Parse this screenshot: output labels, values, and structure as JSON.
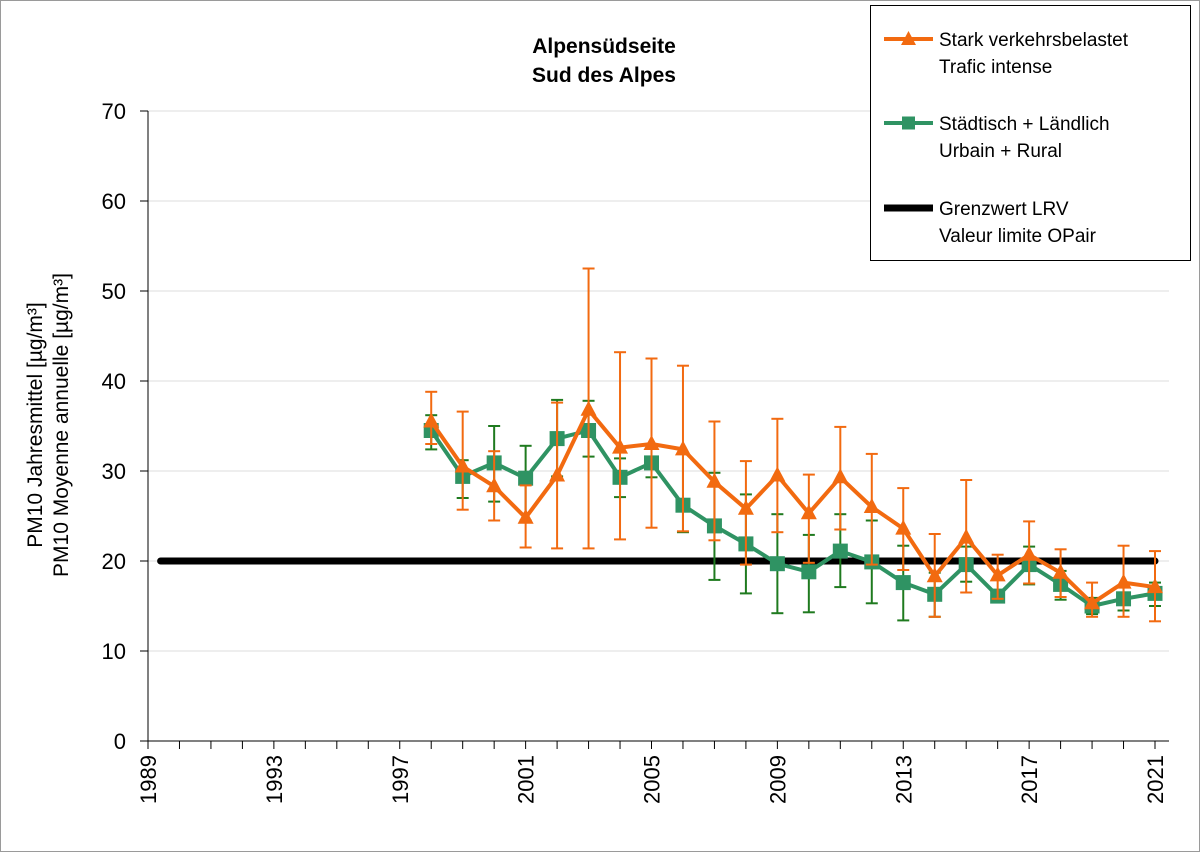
{
  "chart_data": {
    "type": "line",
    "title": [
      "Alpensüdseite",
      "Sud des Alpes"
    ],
    "ylabel": [
      "PM10 Jahresmittel [µg/m³]",
      "PM10 Moyenne annuelle [µg/m³]"
    ],
    "xlabel": "",
    "xlim": [
      1989,
      2021
    ],
    "ylim": [
      0,
      70
    ],
    "x_ticks": [
      1989,
      1993,
      1997,
      2001,
      2005,
      2009,
      2013,
      2017,
      2021
    ],
    "x_tick_labels": [
      "1989",
      "1993",
      "1997",
      "2001",
      "2005",
      "2009",
      "2013",
      "2017",
      "2021"
    ],
    "y_ticks": [
      0,
      10,
      20,
      30,
      40,
      50,
      60,
      70
    ],
    "y_tick_labels": [
      "0",
      "10",
      "20",
      "30",
      "40",
      "50",
      "60",
      "70"
    ],
    "grid": "horizontal",
    "legend_position": "top-right",
    "series": [
      {
        "name": "Stark verkehrsbelastet",
        "name2": "Trafic intense",
        "color": "#F26A10",
        "marker": "triangle",
        "x": [
          1998,
          1999,
          2000,
          2001,
          2002,
          2003,
          2004,
          2005,
          2006,
          2007,
          2008,
          2009,
          2010,
          2011,
          2012,
          2013,
          2014,
          2015,
          2016,
          2017,
          2018,
          2019,
          2020,
          2021
        ],
        "values": [
          35.5,
          30.5,
          28.3,
          24.8,
          29.5,
          36.8,
          32.6,
          33.0,
          32.4,
          28.8,
          25.8,
          29.5,
          25.3,
          29.3,
          26.0,
          23.6,
          18.3,
          22.6,
          18.4,
          20.7,
          18.7,
          15.3,
          17.6,
          17.1
        ],
        "err_low": [
          33.0,
          25.7,
          24.5,
          21.5,
          21.4,
          21.4,
          22.4,
          23.7,
          23.3,
          22.3,
          19.6,
          23.2,
          19.8,
          23.5,
          19.6,
          19.0,
          13.8,
          16.5,
          15.8,
          17.5,
          16.0,
          13.8,
          13.8,
          13.3
        ],
        "err_high": [
          38.8,
          36.6,
          32.2,
          28.4,
          37.6,
          52.5,
          43.2,
          42.5,
          41.7,
          35.5,
          31.1,
          35.8,
          29.6,
          34.9,
          31.9,
          28.1,
          23.0,
          29.0,
          20.7,
          24.4,
          21.3,
          17.6,
          21.7,
          21.1
        ]
      },
      {
        "name": "Städtisch + Ländlich",
        "name2": "Urbain + Rural",
        "color": "#2F9363",
        "err_color": "#1F7A1F",
        "marker": "square",
        "x": [
          1998,
          1999,
          2000,
          2001,
          2002,
          2003,
          2004,
          2005,
          2006,
          2007,
          2008,
          2009,
          2010,
          2011,
          2012,
          2013,
          2014,
          2015,
          2016,
          2017,
          2018,
          2019,
          2020,
          2021
        ],
        "values": [
          34.5,
          29.4,
          30.9,
          29.2,
          33.6,
          34.5,
          29.3,
          30.9,
          26.2,
          23.9,
          21.9,
          19.7,
          18.8,
          21.1,
          19.9,
          17.6,
          16.3,
          19.6,
          16.1,
          19.6,
          17.4,
          15.0,
          15.8,
          16.4
        ],
        "err_low": [
          32.4,
          27.0,
          26.6,
          24.5,
          29.4,
          31.6,
          27.1,
          29.3,
          23.2,
          17.9,
          16.4,
          14.2,
          14.3,
          17.1,
          15.3,
          13.4,
          13.8,
          17.7,
          15.9,
          17.4,
          15.7,
          14.1,
          14.5,
          15.0
        ],
        "err_high": [
          36.2,
          31.2,
          35.0,
          32.8,
          37.9,
          37.8,
          31.4,
          32.5,
          32.0,
          29.8,
          27.4,
          25.2,
          22.9,
          25.2,
          24.5,
          21.7,
          18.7,
          21.6,
          16.3,
          21.6,
          18.9,
          15.9,
          17.2,
          17.6
        ]
      },
      {
        "name": "Grenzwert LRV",
        "name2": "Valeur limite OPair",
        "color": "#000000",
        "marker": "none",
        "x": [
          1989.4,
          2021
        ],
        "values": [
          20,
          20
        ]
      }
    ]
  }
}
